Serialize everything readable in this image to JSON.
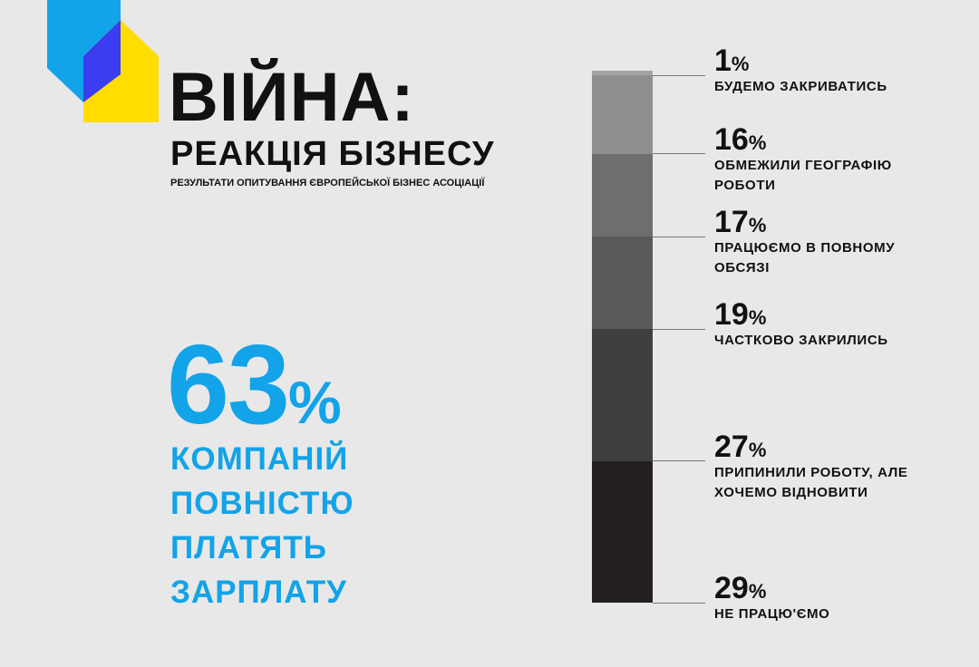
{
  "header": {
    "title": "ВІЙНА:",
    "subtitle": "РЕАКЦІЯ БІЗНЕСУ",
    "note": "РЕЗУЛЬТАТИ ОПИТУВАННЯ ЄВРОПЕЙСЬКОЇ БІЗНЕС АСОЦІАЦІЇ"
  },
  "highlight": {
    "label": "63%",
    "lines": [
      "КОМПАНІЙ",
      "ПОВНІСТЮ",
      "ПЛАТЯТЬ",
      "ЗАРПЛАТУ"
    ]
  },
  "chart_data": {
    "type": "stacked-bar",
    "categories": [
      "БУДЕМО ЗАКРИВАТИСЬ",
      "ОБМЕЖИЛИ ГЕОГРАФІЮ РОБОТИ",
      "ПРАЦЮЄМО В ПОВНОМУ ОБСЯЗІ",
      "ЧАСТКОВО ЗАКРИЛИСЬ",
      "ПРИПИНИЛИ РОБОТУ, АЛЕ ХОЧЕМО ВІДНОВИТИ",
      "НЕ ПРАЦЮ'ЄМО"
    ],
    "values": [
      1,
      16,
      17,
      19,
      27,
      29
    ],
    "value_labels": [
      "1%",
      "16%",
      "17%",
      "19%",
      "27%",
      "29%"
    ],
    "colors": [
      "#a3a3a5",
      "#8e8f91",
      "#6d6e70",
      "#58595b",
      "#3f3f41",
      "#231f20"
    ]
  }
}
